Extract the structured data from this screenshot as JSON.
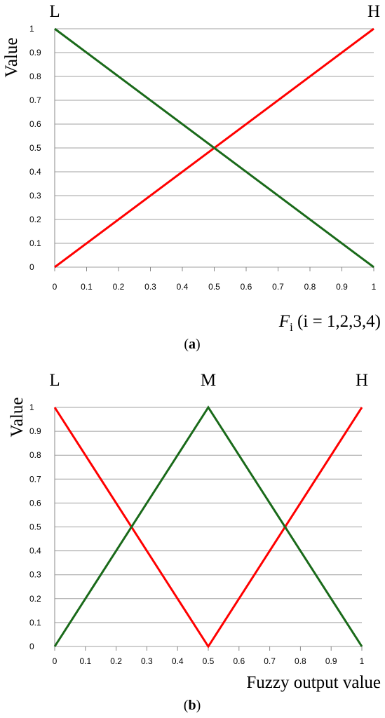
{
  "chart_data": [
    {
      "type": "line",
      "caption": "(a)",
      "caption_bold": "a",
      "ylabel": "Value",
      "xlabel_main": "F",
      "xlabel_sub": "i",
      "xlabel_rest": " (i = 1,2,3,4)",
      "top_labels": [
        {
          "text": "L",
          "x": 0
        },
        {
          "text": "H",
          "x": 1
        }
      ],
      "xlim": [
        0,
        1
      ],
      "ylim": [
        0,
        1
      ],
      "xticks": [
        "0",
        "0.1",
        "0.2",
        "0.3",
        "0.4",
        "0.5",
        "0.6",
        "0.7",
        "0.8",
        "0.9",
        "1"
      ],
      "yticks": [
        "0",
        "0.1",
        "0.2",
        "0.3",
        "0.4",
        "0.5",
        "0.6",
        "0.7",
        "0.8",
        "0.9",
        "1"
      ],
      "grid": "horizontal",
      "series": [
        {
          "color": "#ff0000",
          "x": [
            0,
            1
          ],
          "y": [
            0,
            1
          ]
        },
        {
          "color": "#1a6a1a",
          "x": [
            0,
            1
          ],
          "y": [
            1,
            0
          ]
        }
      ]
    },
    {
      "type": "line",
      "caption": "(b)",
      "caption_bold": "b",
      "ylabel": "Value",
      "xlabel": "Fuzzy output value",
      "top_labels": [
        {
          "text": "L",
          "x": 0
        },
        {
          "text": "M",
          "x": 0.5
        },
        {
          "text": "H",
          "x": 1
        }
      ],
      "xlim": [
        0,
        1
      ],
      "ylim": [
        0,
        1
      ],
      "xticks": [
        "0",
        "0.1",
        "0.2",
        "0.3",
        "0.4",
        "0.5",
        "0.6",
        "0.7",
        "0.8",
        "0.9",
        "1"
      ],
      "yticks": [
        "0",
        "0.1",
        "0.2",
        "0.3",
        "0.4",
        "0.5",
        "0.6",
        "0.7",
        "0.8",
        "0.9",
        "1"
      ],
      "grid": "horizontal",
      "series": [
        {
          "color": "#ff0000",
          "x": [
            0,
            0.5,
            1
          ],
          "y": [
            1,
            0,
            1
          ]
        },
        {
          "color": "#1a6a1a",
          "x": [
            0,
            0.5,
            1
          ],
          "y": [
            0,
            1,
            0
          ]
        }
      ]
    }
  ]
}
